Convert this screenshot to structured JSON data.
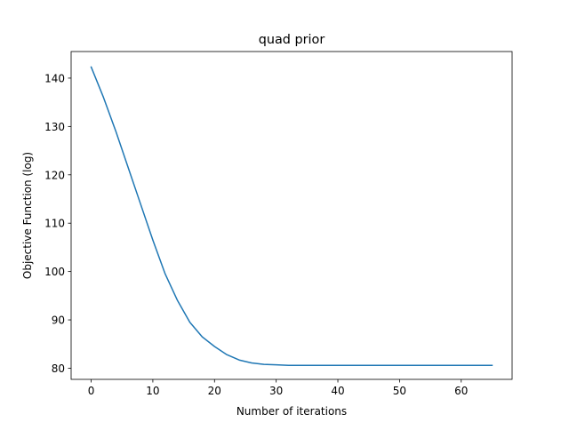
{
  "chart_data": {
    "type": "line",
    "title": "quad prior",
    "xlabel": "Number of iterations",
    "ylabel": "Objective Function (log)",
    "xlim": [
      -3.25,
      68.25
    ],
    "ylim": [
      77.7,
      145.5
    ],
    "xticks": [
      0,
      10,
      20,
      30,
      40,
      50,
      60
    ],
    "yticks": [
      80,
      90,
      100,
      110,
      120,
      130,
      140
    ],
    "grid": false,
    "series": [
      {
        "color": "#1f77b4",
        "x": [
          0,
          2,
          4,
          6,
          8,
          10,
          12,
          14,
          16,
          18,
          20,
          22,
          24,
          26,
          28,
          30,
          32,
          34,
          36,
          38,
          40,
          45,
          50,
          55,
          60,
          65
        ],
        "y": [
          142.3,
          136.0,
          129.0,
          121.5,
          114.0,
          106.5,
          99.5,
          94.0,
          89.5,
          86.5,
          84.5,
          82.8,
          81.7,
          81.1,
          80.8,
          80.7,
          80.6,
          80.6,
          80.6,
          80.6,
          80.6,
          80.6,
          80.6,
          80.6,
          80.6,
          80.6
        ]
      }
    ]
  }
}
